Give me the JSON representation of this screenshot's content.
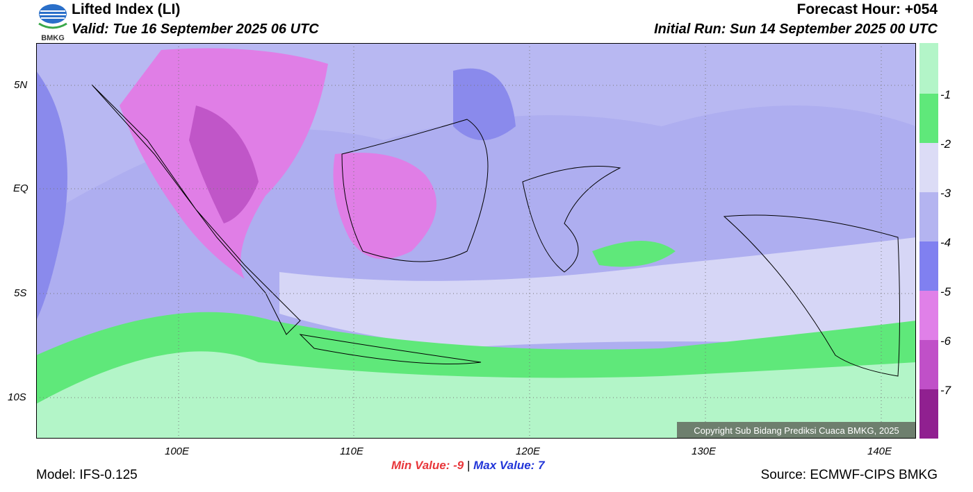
{
  "header": {
    "logo_text": "BMKG",
    "title": "Lifted Index (LI)",
    "valid": "Valid: Tue 16 September 2025 06 UTC",
    "forecast_hour": "Forecast Hour: +054",
    "initial_run": "Initial Run: Sun 14 September 2025 00 UTC"
  },
  "map": {
    "lat_labels": [
      "5N",
      "EQ",
      "5S",
      "10S"
    ],
    "lon_labels": [
      "100E",
      "110E",
      "120E",
      "130E",
      "140E"
    ],
    "copyright": "Copyright Sub Bidang Prediksi Cuaca BMKG, 2025"
  },
  "colorbar": {
    "labels": [
      "-1",
      "-2",
      "-3",
      "-4",
      "-5",
      "-6",
      "-7"
    ]
  },
  "footer": {
    "min_label": "Min Value:",
    "min_value": "-9",
    "separator": "|",
    "max_label": "Max Value:",
    "max_value": "7",
    "model": "Model: IFS-0.125",
    "source": "Source: ECMWF-CIPS BMKG"
  }
}
